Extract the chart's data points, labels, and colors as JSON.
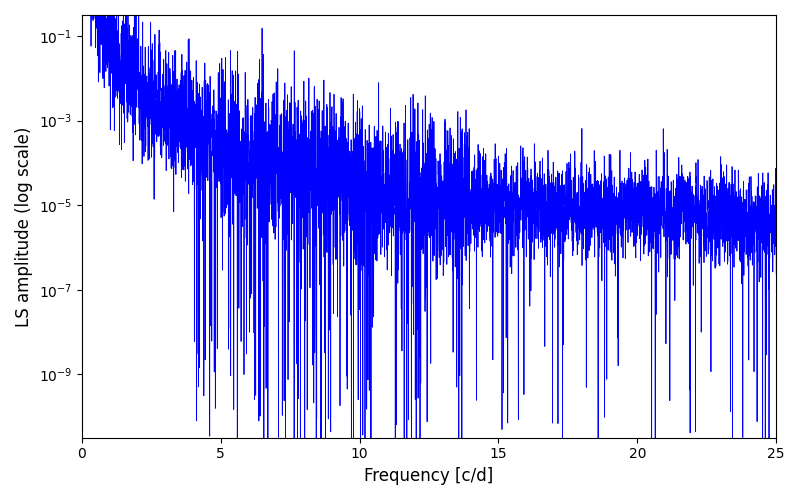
{
  "title": "",
  "xlabel": "Frequency [c/d]",
  "ylabel": "LS amplitude (log scale)",
  "line_color": "#0000ff",
  "line_width": 0.6,
  "xlim": [
    0,
    25
  ],
  "ylim_log": [
    -10.5,
    -0.5
  ],
  "yscale": "log",
  "background_color": "#ffffff",
  "figsize": [
    8.0,
    5.0
  ],
  "dpi": 100,
  "seed": 12345,
  "n_points": 5000,
  "freq_max": 25.0,
  "yticks": [
    1e-09,
    1e-07,
    1e-05,
    0.001,
    0.1
  ]
}
